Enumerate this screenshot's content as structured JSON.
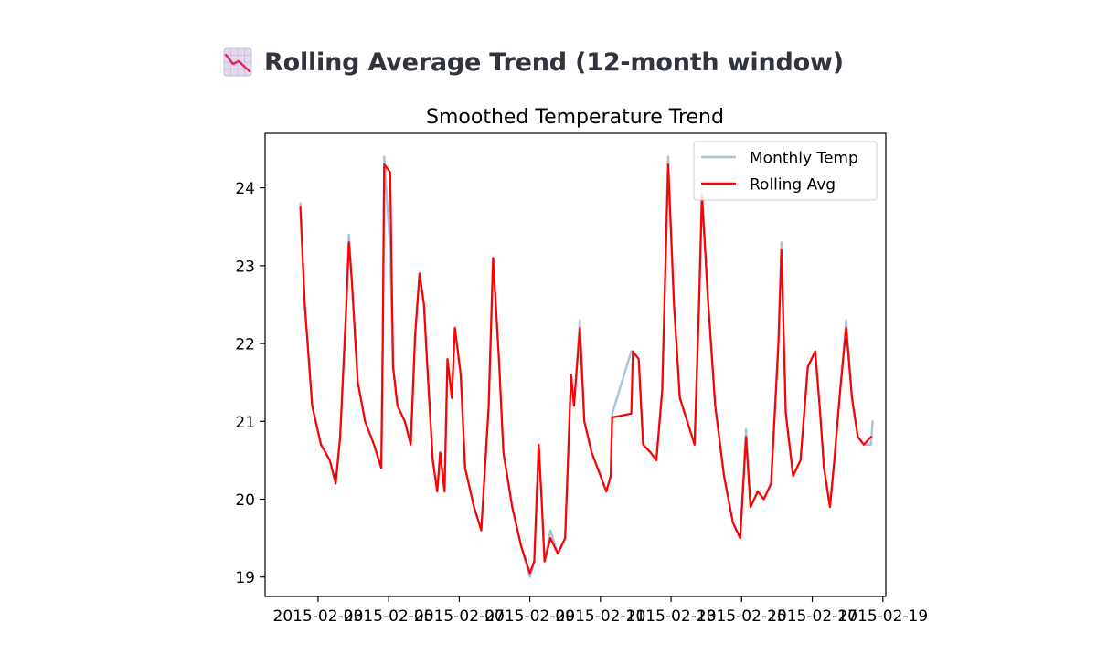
{
  "section": {
    "title": "Rolling Average Trend (12-month window)",
    "icon": "chart-decreasing-icon"
  },
  "chart_data": {
    "type": "line",
    "title": "Smoothed Temperature Trend",
    "xlabel": "",
    "ylabel": "",
    "ylim": [
      18.75,
      24.7
    ],
    "y_ticks": [
      19,
      20,
      21,
      22,
      23,
      24
    ],
    "x_ticks": [
      "2015-02-03",
      "2015-02-05",
      "2015-02-07",
      "2015-02-09",
      "2015-02-11",
      "2015-02-13",
      "2015-02-15",
      "2015-02-17",
      "2015-02-19"
    ],
    "x_tick_labels": [
      "2015-02-03",
      "2015-02-05",
      "2015-02-07",
      "2015-02-09",
      "2015-02-11",
      "2015-02-13",
      "2015-02-15",
      "2015-02-17",
      "2015-02-19"
    ],
    "x_range": [
      "2015-02-01 12:00",
      "2015-02-19 02:00"
    ],
    "grid": false,
    "legend_position": "upper right",
    "series": [
      {
        "name": "Monthly Temp",
        "color": "#a6c4dc",
        "points": [
          [
            "2015-02-02 12:00",
            23.8
          ],
          [
            "2015-02-02 15:00",
            22.5
          ],
          [
            "2015-02-02 20:00",
            21.2
          ],
          [
            "2015-02-03 02:00",
            20.7
          ],
          [
            "2015-02-03 08:00",
            20.5
          ],
          [
            "2015-02-03 12:00",
            20.2
          ],
          [
            "2015-02-03 15:00",
            20.8
          ],
          [
            "2015-02-03 19:00",
            22.4
          ],
          [
            "2015-02-03 21:00",
            23.4
          ],
          [
            "2015-02-03 23:00",
            22.8
          ],
          [
            "2015-02-04 03:00",
            21.5
          ],
          [
            "2015-02-04 08:00",
            21.0
          ],
          [
            "2015-02-04 14:00",
            20.7
          ],
          [
            "2015-02-04 19:00",
            20.4
          ],
          [
            "2015-02-04 20:00",
            22.0
          ],
          [
            "2015-02-04 21:00",
            24.4
          ],
          [
            "2015-02-05 01:00",
            23.2
          ],
          [
            "2015-02-05 03:00",
            21.7
          ],
          [
            "2015-02-05 06:00",
            21.2
          ],
          [
            "2015-02-05 11:00",
            21.0
          ],
          [
            "2015-02-05 15:00",
            20.7
          ],
          [
            "2015-02-05 18:00",
            22.1
          ],
          [
            "2015-02-05 21:00",
            22.9
          ],
          [
            "2015-02-06 00:00",
            22.5
          ],
          [
            "2015-02-06 02:00",
            21.8
          ],
          [
            "2015-02-06 06:00",
            20.5
          ],
          [
            "2015-02-06 09:00",
            20.1
          ],
          [
            "2015-02-06 11:00",
            20.6
          ],
          [
            "2015-02-06 14:00",
            20.1
          ],
          [
            "2015-02-06 16:00",
            21.8
          ],
          [
            "2015-02-06 19:00",
            21.3
          ],
          [
            "2015-02-06 21:00",
            22.2
          ],
          [
            "2015-02-07 01:00",
            21.6
          ],
          [
            "2015-02-07 04:00",
            20.4
          ],
          [
            "2015-02-07 10:00",
            19.9
          ],
          [
            "2015-02-07 15:00",
            19.6
          ],
          [
            "2015-02-07 20:00",
            21.2
          ],
          [
            "2015-02-07 23:00",
            23.1
          ],
          [
            "2015-02-08 03:00",
            21.8
          ],
          [
            "2015-02-08 06:00",
            20.6
          ],
          [
            "2015-02-08 12:00",
            19.9
          ],
          [
            "2015-02-08 18:00",
            19.4
          ],
          [
            "2015-02-09 00:00",
            19.0
          ],
          [
            "2015-02-09 03:00",
            19.2
          ],
          [
            "2015-02-09 06:00",
            20.7
          ],
          [
            "2015-02-09 08:00",
            20.0
          ],
          [
            "2015-02-09 10:00",
            19.2
          ],
          [
            "2015-02-09 14:00",
            19.6
          ],
          [
            "2015-02-09 19:00",
            19.3
          ],
          [
            "2015-02-10 00:00",
            19.5
          ],
          [
            "2015-02-10 04:00",
            21.6
          ],
          [
            "2015-02-10 06:00",
            21.2
          ],
          [
            "2015-02-10 10:00",
            22.3
          ],
          [
            "2015-02-10 13:00",
            21.0
          ],
          [
            "2015-02-10 18:00",
            20.6
          ],
          [
            "2015-02-11 00:00",
            20.3
          ],
          [
            "2015-02-11 04:00",
            20.1
          ],
          [
            "2015-02-11 07:00",
            20.3
          ],
          [
            "2015-02-11 08:00",
            21.1
          ],
          [
            "2015-02-11 21:00",
            21.9
          ],
          [
            "2015-02-12 02:00",
            21.8
          ],
          [
            "2015-02-12 05:00",
            20.7
          ],
          [
            "2015-02-12 10:00",
            20.6
          ],
          [
            "2015-02-12 14:00",
            20.5
          ],
          [
            "2015-02-12 18:00",
            21.4
          ],
          [
            "2015-02-12 22:00",
            24.4
          ],
          [
            "2015-02-13 02:00",
            22.5
          ],
          [
            "2015-02-13 06:00",
            21.3
          ],
          [
            "2015-02-13 11:00",
            21.0
          ],
          [
            "2015-02-13 16:00",
            20.7
          ],
          [
            "2015-02-13 19:00",
            22.5
          ],
          [
            "2015-02-13 21:00",
            24.0
          ],
          [
            "2015-02-14 01:00",
            22.6
          ],
          [
            "2015-02-14 06:00",
            21.2
          ],
          [
            "2015-02-14 12:00",
            20.3
          ],
          [
            "2015-02-14 18:00",
            19.7
          ],
          [
            "2015-02-14 23:00",
            19.5
          ],
          [
            "2015-02-15 03:00",
            20.9
          ],
          [
            "2015-02-15 06:00",
            19.9
          ],
          [
            "2015-02-15 11:00",
            20.1
          ],
          [
            "2015-02-15 15:00",
            20.0
          ],
          [
            "2015-02-15 20:00",
            20.2
          ],
          [
            "2015-02-16 01:00",
            22.0
          ],
          [
            "2015-02-16 03:00",
            23.3
          ],
          [
            "2015-02-16 06:00",
            21.1
          ],
          [
            "2015-02-16 11:00",
            20.3
          ],
          [
            "2015-02-16 16:00",
            20.5
          ],
          [
            "2015-02-16 21:00",
            21.7
          ],
          [
            "2015-02-17 02:00",
            21.9
          ],
          [
            "2015-02-17 05:00",
            21.2
          ],
          [
            "2015-02-17 08:00",
            20.4
          ],
          [
            "2015-02-17 12:00",
            19.9
          ],
          [
            "2015-02-17 15:00",
            20.5
          ],
          [
            "2015-02-17 19:00",
            21.4
          ],
          [
            "2015-02-17 23:00",
            22.3
          ],
          [
            "2015-02-18 03:00",
            21.3
          ],
          [
            "2015-02-18 07:00",
            20.8
          ],
          [
            "2015-02-18 11:00",
            20.7
          ],
          [
            "2015-02-18 16:00",
            20.7
          ],
          [
            "2015-02-18 17:00",
            21.0
          ]
        ]
      },
      {
        "name": "Rolling Avg",
        "color": "#ff0000",
        "points": [
          [
            "2015-02-02 12:00",
            23.75
          ],
          [
            "2015-02-02 15:00",
            22.5
          ],
          [
            "2015-02-02 20:00",
            21.2
          ],
          [
            "2015-02-03 02:00",
            20.7
          ],
          [
            "2015-02-03 08:00",
            20.5
          ],
          [
            "2015-02-03 12:00",
            20.2
          ],
          [
            "2015-02-03 15:00",
            20.8
          ],
          [
            "2015-02-03 19:00",
            22.4
          ],
          [
            "2015-02-03 21:00",
            23.3
          ],
          [
            "2015-02-03 23:00",
            22.8
          ],
          [
            "2015-02-04 03:00",
            21.5
          ],
          [
            "2015-02-04 08:00",
            21.0
          ],
          [
            "2015-02-04 14:00",
            20.7
          ],
          [
            "2015-02-04 19:00",
            20.4
          ],
          [
            "2015-02-04 20:00",
            22.0
          ],
          [
            "2015-02-04 21:00",
            24.3
          ],
          [
            "2015-02-05 01:00",
            24.2
          ],
          [
            "2015-02-05 03:00",
            21.7
          ],
          [
            "2015-02-05 06:00",
            21.2
          ],
          [
            "2015-02-05 11:00",
            21.0
          ],
          [
            "2015-02-05 15:00",
            20.7
          ],
          [
            "2015-02-05 18:00",
            22.1
          ],
          [
            "2015-02-05 21:00",
            22.9
          ],
          [
            "2015-02-06 00:00",
            22.5
          ],
          [
            "2015-02-06 02:00",
            21.8
          ],
          [
            "2015-02-06 06:00",
            20.5
          ],
          [
            "2015-02-06 09:00",
            20.1
          ],
          [
            "2015-02-06 11:00",
            20.6
          ],
          [
            "2015-02-06 14:00",
            20.1
          ],
          [
            "2015-02-06 16:00",
            21.8
          ],
          [
            "2015-02-06 19:00",
            21.3
          ],
          [
            "2015-02-06 21:00",
            22.2
          ],
          [
            "2015-02-07 01:00",
            21.6
          ],
          [
            "2015-02-07 04:00",
            20.4
          ],
          [
            "2015-02-07 10:00",
            19.9
          ],
          [
            "2015-02-07 15:00",
            19.6
          ],
          [
            "2015-02-07 20:00",
            21.2
          ],
          [
            "2015-02-07 23:00",
            23.1
          ],
          [
            "2015-02-08 03:00",
            21.8
          ],
          [
            "2015-02-08 06:00",
            20.6
          ],
          [
            "2015-02-08 12:00",
            19.9
          ],
          [
            "2015-02-08 18:00",
            19.4
          ],
          [
            "2015-02-09 00:00",
            19.05
          ],
          [
            "2015-02-09 03:00",
            19.2
          ],
          [
            "2015-02-09 06:00",
            20.7
          ],
          [
            "2015-02-09 08:00",
            20.0
          ],
          [
            "2015-02-09 10:00",
            19.2
          ],
          [
            "2015-02-09 14:00",
            19.5
          ],
          [
            "2015-02-09 19:00",
            19.3
          ],
          [
            "2015-02-10 00:00",
            19.5
          ],
          [
            "2015-02-10 04:00",
            21.6
          ],
          [
            "2015-02-10 06:00",
            21.2
          ],
          [
            "2015-02-10 10:00",
            22.2
          ],
          [
            "2015-02-10 13:00",
            21.0
          ],
          [
            "2015-02-10 18:00",
            20.6
          ],
          [
            "2015-02-11 00:00",
            20.3
          ],
          [
            "2015-02-11 04:00",
            20.1
          ],
          [
            "2015-02-11 07:00",
            20.3
          ],
          [
            "2015-02-11 08:00",
            21.05
          ],
          [
            "2015-02-11 21:00",
            21.1
          ],
          [
            "2015-02-11 22:00",
            21.9
          ],
          [
            "2015-02-12 02:00",
            21.8
          ],
          [
            "2015-02-12 05:00",
            20.7
          ],
          [
            "2015-02-12 10:00",
            20.6
          ],
          [
            "2015-02-12 14:00",
            20.5
          ],
          [
            "2015-02-12 18:00",
            21.4
          ],
          [
            "2015-02-12 22:00",
            24.3
          ],
          [
            "2015-02-13 02:00",
            22.5
          ],
          [
            "2015-02-13 06:00",
            21.3
          ],
          [
            "2015-02-13 11:00",
            21.0
          ],
          [
            "2015-02-13 16:00",
            20.7
          ],
          [
            "2015-02-13 19:00",
            22.5
          ],
          [
            "2015-02-13 21:00",
            23.9
          ],
          [
            "2015-02-14 01:00",
            22.6
          ],
          [
            "2015-02-14 06:00",
            21.2
          ],
          [
            "2015-02-14 12:00",
            20.3
          ],
          [
            "2015-02-14 18:00",
            19.7
          ],
          [
            "2015-02-14 23:00",
            19.5
          ],
          [
            "2015-02-15 03:00",
            20.8
          ],
          [
            "2015-02-15 06:00",
            19.9
          ],
          [
            "2015-02-15 11:00",
            20.1
          ],
          [
            "2015-02-15 15:00",
            20.0
          ],
          [
            "2015-02-15 20:00",
            20.2
          ],
          [
            "2015-02-16 01:00",
            22.0
          ],
          [
            "2015-02-16 03:00",
            23.2
          ],
          [
            "2015-02-16 06:00",
            21.1
          ],
          [
            "2015-02-16 11:00",
            20.3
          ],
          [
            "2015-02-16 16:00",
            20.5
          ],
          [
            "2015-02-16 21:00",
            21.7
          ],
          [
            "2015-02-17 02:00",
            21.9
          ],
          [
            "2015-02-17 05:00",
            21.2
          ],
          [
            "2015-02-17 08:00",
            20.4
          ],
          [
            "2015-02-17 12:00",
            19.9
          ],
          [
            "2015-02-17 15:00",
            20.5
          ],
          [
            "2015-02-17 19:00",
            21.4
          ],
          [
            "2015-02-17 23:00",
            22.2
          ],
          [
            "2015-02-18 03:00",
            21.3
          ],
          [
            "2015-02-18 07:00",
            20.8
          ],
          [
            "2015-02-18 11:00",
            20.7
          ],
          [
            "2015-02-18 16:00",
            20.8
          ]
        ]
      }
    ]
  }
}
